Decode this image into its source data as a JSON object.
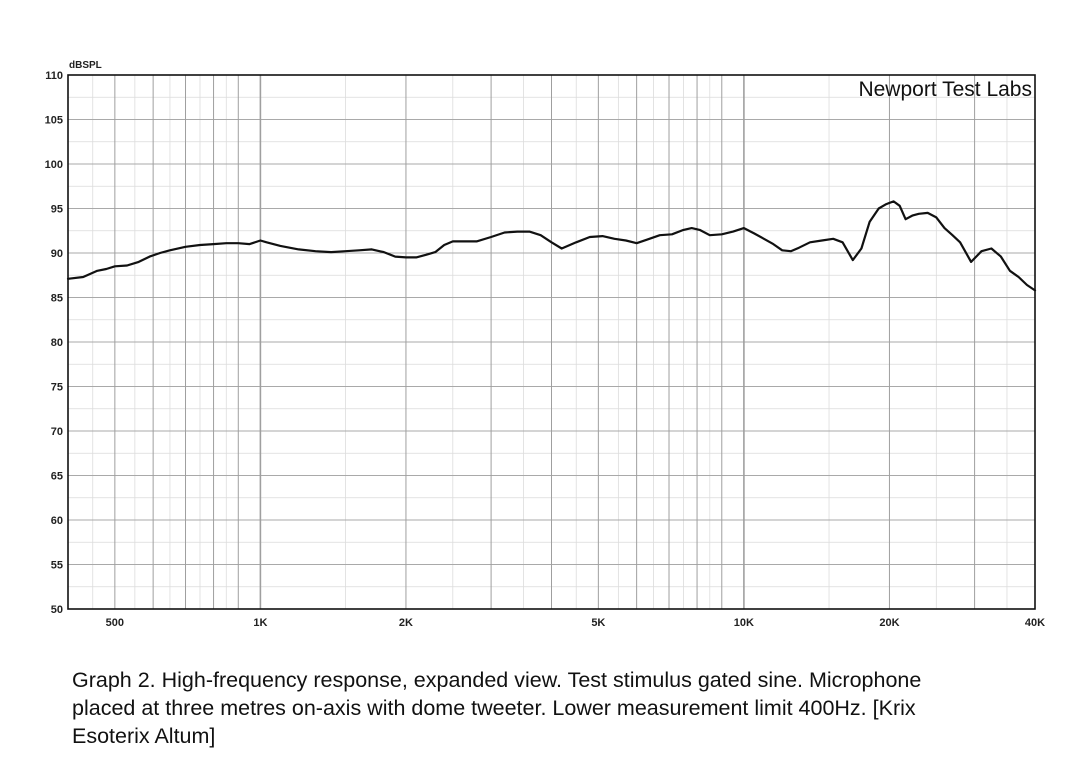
{
  "chart_data": {
    "type": "line",
    "ylabel": "dBSPL",
    "annotation": "Newport Test Labs",
    "x_scale": "log",
    "xlim": [
      400,
      40000
    ],
    "ylim": [
      50,
      110
    ],
    "x_ticks": [
      {
        "value": 500,
        "label": "500"
      },
      {
        "value": 1000,
        "label": "1K"
      },
      {
        "value": 2000,
        "label": "2K"
      },
      {
        "value": 5000,
        "label": "5K"
      },
      {
        "value": 10000,
        "label": "10K"
      },
      {
        "value": 20000,
        "label": "20K"
      },
      {
        "value": 40000,
        "label": "40K"
      }
    ],
    "y_ticks": [
      50,
      55,
      60,
      65,
      70,
      75,
      80,
      85,
      90,
      95,
      100,
      105,
      110
    ],
    "grid": true,
    "series": [
      {
        "color": "#111111",
        "x": [
          400,
          430,
          460,
          480,
          500,
          530,
          560,
          590,
          620,
          650,
          700,
          750,
          800,
          850,
          900,
          950,
          1000,
          1030,
          1100,
          1200,
          1300,
          1400,
          1500,
          1600,
          1700,
          1800,
          1900,
          2000,
          2100,
          2200,
          2300,
          2400,
          2500,
          2600,
          2800,
          3000,
          3200,
          3400,
          3600,
          3800,
          4000,
          4200,
          4500,
          4800,
          5100,
          5400,
          5700,
          6000,
          6300,
          6700,
          7100,
          7500,
          7800,
          8100,
          8500,
          9000,
          9500,
          10000,
          10500,
          11000,
          11500,
          12000,
          12500,
          13000,
          13700,
          14500,
          15300,
          16000,
          16800,
          17500,
          18200,
          19000,
          19700,
          20400,
          21000,
          21600,
          22300,
          23000,
          24000,
          25000,
          26000,
          27000,
          28000,
          29500,
          31000,
          32500,
          34000,
          35500,
          37000,
          38500,
          40000
        ],
        "y": [
          87.1,
          87.3,
          88.0,
          88.2,
          88.5,
          88.6,
          89.0,
          89.6,
          90.0,
          90.3,
          90.7,
          90.9,
          91.0,
          91.1,
          91.1,
          91.0,
          91.4,
          91.2,
          90.8,
          90.4,
          90.2,
          90.1,
          90.2,
          90.3,
          90.4,
          90.1,
          89.6,
          89.5,
          89.5,
          89.8,
          90.1,
          90.9,
          91.3,
          91.3,
          91.3,
          91.8,
          92.3,
          92.4,
          92.4,
          92.0,
          91.2,
          90.5,
          91.2,
          91.8,
          91.9,
          91.6,
          91.4,
          91.1,
          91.5,
          92.0,
          92.1,
          92.6,
          92.8,
          92.6,
          92.0,
          92.1,
          92.4,
          92.8,
          92.2,
          91.6,
          91.0,
          90.3,
          90.2,
          90.6,
          91.2,
          91.4,
          91.6,
          91.2,
          89.2,
          90.5,
          93.5,
          95.0,
          95.5,
          95.8,
          95.3,
          93.8,
          94.2,
          94.4,
          94.5,
          94.0,
          92.8,
          92.0,
          91.2,
          89.0,
          90.2,
          90.5,
          89.6,
          88.0,
          87.3,
          86.4,
          85.8
        ]
      }
    ]
  },
  "caption": {
    "line1": "Graph 2. High-frequency response, expanded view. Test stimulus gated sine. Microphone",
    "line2": "placed at three metres on-axis with dome tweeter. Lower measurement limit 400Hz. [Krix",
    "line3": "Esoterix Altum]"
  }
}
